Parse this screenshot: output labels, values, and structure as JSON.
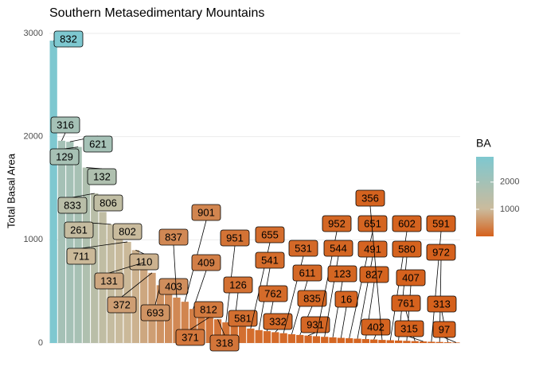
{
  "chart_data": {
    "type": "bar",
    "title": "Southern Metasedimentary Mountains",
    "y_label": "Total Basal Area",
    "legend_title": "BA",
    "categories": [
      "832",
      "316",
      "621",
      "129",
      "132",
      "833",
      "806",
      "261",
      "802",
      "711",
      "110",
      "131",
      "372",
      "693",
      "403",
      "837",
      "901",
      "409",
      "812",
      "371",
      "318",
      "951",
      "126",
      "581",
      "655",
      "541",
      "762",
      "332",
      "531",
      "611",
      "835",
      "931",
      "952",
      "544",
      "123",
      "16",
      "651",
      "491",
      "827",
      "402",
      "356",
      "602",
      "580",
      "407",
      "761",
      "315",
      "591",
      "972",
      "313",
      "97"
    ],
    "values": [
      2930,
      1960,
      1950,
      1900,
      1700,
      1450,
      1270,
      1150,
      1050,
      980,
      900,
      780,
      680,
      560,
      500,
      440,
      400,
      330,
      280,
      250,
      230,
      200,
      180,
      160,
      140,
      125,
      115,
      105,
      95,
      85,
      78,
      72,
      66,
      60,
      55,
      50,
      46,
      42,
      38,
      34,
      30,
      27,
      24,
      21,
      18,
      15,
      12,
      10,
      7,
      5
    ],
    "ylim": [
      0,
      3000
    ],
    "yticks": [
      0,
      1000,
      2000,
      3000
    ],
    "grid": true,
    "fill_scale": {
      "low": "#d5611c",
      "mid": "#cbbb9c",
      "high": "#7ec8d0",
      "midpoint": 1000
    },
    "legend_ticks": [
      1000,
      2000
    ]
  }
}
